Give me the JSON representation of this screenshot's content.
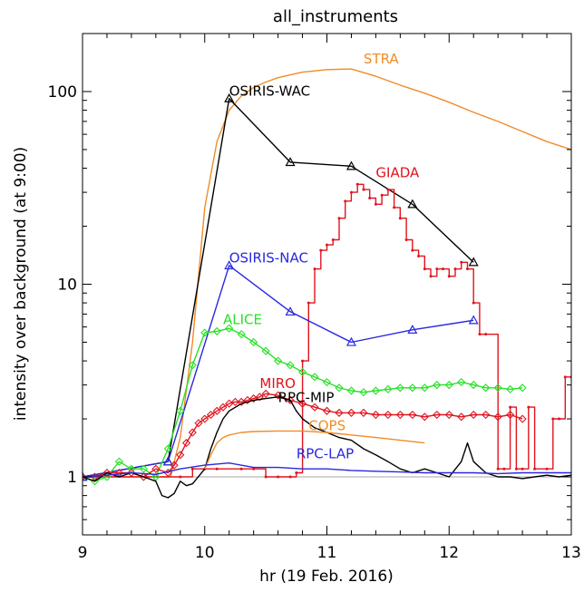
{
  "chart_data": {
    "type": "line",
    "title": "all_instruments",
    "xlabel": "hr (19 Feb. 2016)",
    "ylabel": "intensity over background (at 9:00)",
    "xlim": [
      9,
      13
    ],
    "ylim": [
      0.5,
      200
    ],
    "y_scale": "log",
    "x_ticks": [
      9,
      10,
      11,
      12,
      13
    ],
    "x_tick_labels": [
      "9",
      "10",
      "11",
      "12",
      "13"
    ],
    "y_ticks": [
      1,
      10,
      100
    ],
    "y_tick_labels": [
      "1",
      "10",
      "100"
    ],
    "reference_line": 1,
    "colors": {
      "black": "#000000",
      "orange": "#f08c28",
      "red": "#e0141e",
      "blue": "#2828e0",
      "green": "#28e028",
      "gray": "#888888"
    },
    "series": [
      {
        "name": "STRA",
        "color": "#f08c28",
        "style": "line",
        "x": [
          9.0,
          9.2,
          9.4,
          9.6,
          9.72,
          9.8,
          9.9,
          10.0,
          10.1,
          10.2,
          10.3,
          10.4,
          10.5,
          10.6,
          10.7,
          10.8,
          10.9,
          11.0,
          11.2,
          11.4,
          11.6,
          11.8,
          12.0,
          12.2,
          12.4,
          12.6,
          12.8,
          13.0
        ],
        "y": [
          1.0,
          1.0,
          1.0,
          1.0,
          1.0,
          1.6,
          5.0,
          25.0,
          55.0,
          80.0,
          95.0,
          105.0,
          112.0,
          118.0,
          122.0,
          126.0,
          128.0,
          130.0,
          131.0,
          120.0,
          108.0,
          98.0,
          88.0,
          78.0,
          70.0,
          62.0,
          55.0,
          50.0
        ]
      },
      {
        "name": "OSIRIS-WAC",
        "color": "#000000",
        "style": "triangle",
        "x": [
          9.0,
          9.7,
          10.2,
          10.7,
          11.2,
          11.7,
          12.2
        ],
        "y": [
          1.0,
          1.2,
          92.0,
          43.0,
          41.0,
          26.0,
          13.0
        ]
      },
      {
        "name": "GIADA",
        "color": "#e0141e",
        "style": "dot-step",
        "x": [
          9.0,
          9.8,
          9.9,
          10.0,
          10.1,
          10.3,
          10.4,
          10.5,
          10.6,
          10.7,
          10.75,
          10.8,
          10.85,
          10.9,
          10.95,
          11.0,
          11.05,
          11.1,
          11.15,
          11.2,
          11.25,
          11.3,
          11.35,
          11.4,
          11.45,
          11.5,
          11.55,
          11.6,
          11.65,
          11.7,
          11.75,
          11.8,
          11.85,
          11.9,
          11.95,
          12.0,
          12.05,
          12.1,
          12.15,
          12.2,
          12.25,
          12.3,
          12.4,
          12.45,
          12.5,
          12.55,
          12.6,
          12.65,
          12.7,
          12.8,
          12.85,
          12.9,
          12.95,
          13.0
        ],
        "y": [
          1.0,
          1.0,
          1.1,
          1.1,
          1.1,
          1.1,
          1.1,
          1.0,
          1.0,
          1.0,
          1.05,
          4.0,
          8.0,
          12.0,
          15.0,
          16.0,
          17.0,
          22.0,
          27.0,
          30.0,
          33.0,
          31.0,
          28.0,
          26.0,
          29.0,
          31.0,
          25.0,
          22.0,
          17.0,
          15.0,
          14.0,
          12.0,
          11.0,
          12.0,
          12.0,
          11.0,
          12.0,
          13.0,
          12.0,
          8.0,
          5.5,
          5.5,
          1.1,
          1.1,
          2.3,
          1.1,
          1.1,
          2.3,
          1.1,
          1.1,
          2.0,
          2.0,
          3.3,
          3.3
        ]
      },
      {
        "name": "OSIRIS-NAC",
        "color": "#2828e0",
        "style": "triangle",
        "x": [
          9.0,
          9.7,
          10.2,
          10.7,
          11.2,
          11.7,
          12.2
        ],
        "y": [
          1.0,
          1.2,
          12.5,
          7.2,
          5.0,
          5.8,
          6.5
        ]
      },
      {
        "name": "ALICE",
        "color": "#28e028",
        "style": "diamond",
        "x": [
          9.0,
          9.1,
          9.2,
          9.3,
          9.4,
          9.5,
          9.6,
          9.7,
          9.8,
          9.9,
          10.0,
          10.1,
          10.2,
          10.3,
          10.4,
          10.5,
          10.6,
          10.7,
          10.8,
          10.9,
          11.0,
          11.1,
          11.2,
          11.3,
          11.4,
          11.5,
          11.6,
          11.7,
          11.8,
          11.9,
          12.0,
          12.1,
          12.2,
          12.3,
          12.4,
          12.5,
          12.6
        ],
        "y": [
          1.0,
          0.95,
          1.0,
          1.2,
          1.1,
          1.1,
          1.0,
          1.4,
          2.2,
          3.8,
          5.6,
          5.7,
          5.9,
          5.5,
          5.0,
          4.5,
          4.0,
          3.8,
          3.5,
          3.3,
          3.1,
          2.9,
          2.8,
          2.75,
          2.8,
          2.85,
          2.9,
          2.9,
          2.9,
          3.0,
          3.0,
          3.1,
          3.0,
          2.9,
          2.9,
          2.85,
          2.9
        ]
      },
      {
        "name": "MIRO",
        "color": "#e0141e",
        "style": "diamond",
        "x": [
          9.0,
          9.1,
          9.2,
          9.3,
          9.4,
          9.5,
          9.6,
          9.7,
          9.75,
          9.8,
          9.85,
          9.9,
          9.95,
          10.0,
          10.05,
          10.1,
          10.15,
          10.2,
          10.25,
          10.3,
          10.35,
          10.4,
          10.45,
          10.5,
          10.6,
          10.7,
          10.8,
          10.9,
          11.0,
          11.1,
          11.2,
          11.3,
          11.4,
          11.5,
          11.6,
          11.7,
          11.8,
          11.9,
          12.0,
          12.1,
          12.2,
          12.3,
          12.4,
          12.5,
          12.6
        ],
        "y": [
          1.0,
          1.0,
          1.05,
          1.05,
          1.05,
          1.0,
          1.1,
          1.05,
          1.15,
          1.3,
          1.5,
          1.7,
          1.9,
          2.0,
          2.1,
          2.2,
          2.3,
          2.4,
          2.45,
          2.45,
          2.5,
          2.55,
          2.6,
          2.7,
          2.65,
          2.5,
          2.4,
          2.3,
          2.2,
          2.15,
          2.15,
          2.15,
          2.1,
          2.1,
          2.1,
          2.1,
          2.05,
          2.1,
          2.1,
          2.05,
          2.1,
          2.1,
          2.05,
          2.1,
          2.0
        ]
      },
      {
        "name": "RPC-MIP",
        "color": "#000000",
        "style": "line",
        "x": [
          9.0,
          9.1,
          9.2,
          9.3,
          9.4,
          9.5,
          9.6,
          9.65,
          9.7,
          9.75,
          9.8,
          9.85,
          9.9,
          10.0,
          10.05,
          10.1,
          10.15,
          10.2,
          10.3,
          10.4,
          10.5,
          10.6,
          10.7,
          10.75,
          10.8,
          10.9,
          11.0,
          11.1,
          11.2,
          11.3,
          11.4,
          11.5,
          11.6,
          11.7,
          11.8,
          11.9,
          12.0,
          12.1,
          12.15,
          12.2,
          12.3,
          12.4,
          12.5,
          12.6,
          12.7,
          12.8,
          12.9,
          13.0
        ],
        "y": [
          1.0,
          0.95,
          1.05,
          1.0,
          1.05,
          1.0,
          0.95,
          0.8,
          0.78,
          0.82,
          0.95,
          0.9,
          0.92,
          1.1,
          1.4,
          1.7,
          2.0,
          2.2,
          2.4,
          2.5,
          2.55,
          2.6,
          2.5,
          2.2,
          2.0,
          1.8,
          1.7,
          1.6,
          1.55,
          1.4,
          1.3,
          1.2,
          1.1,
          1.05,
          1.1,
          1.05,
          1.0,
          1.2,
          1.5,
          1.2,
          1.05,
          1.0,
          1.0,
          0.98,
          1.0,
          1.02,
          1.0,
          1.02
        ]
      },
      {
        "name": "COPS",
        "color": "#f08c28",
        "style": "line",
        "x": [
          10.0,
          10.05,
          10.1,
          10.15,
          10.2,
          10.3,
          10.4,
          10.6,
          10.8,
          11.0,
          11.2,
          11.4,
          11.6,
          11.8
        ],
        "y": [
          1.1,
          1.3,
          1.5,
          1.6,
          1.65,
          1.7,
          1.72,
          1.73,
          1.73,
          1.7,
          1.65,
          1.6,
          1.55,
          1.5
        ]
      },
      {
        "name": "RPC-LAP",
        "color": "#2828e0",
        "style": "line",
        "x": [
          9.0,
          9.2,
          9.4,
          9.6,
          9.8,
          10.0,
          10.2,
          10.4,
          10.6,
          10.8,
          11.0,
          11.2,
          11.4,
          11.6,
          11.8,
          12.0,
          12.2,
          12.4,
          12.6,
          12.8,
          13.0
        ],
        "y": [
          1.0,
          1.02,
          1.05,
          1.03,
          1.1,
          1.15,
          1.18,
          1.12,
          1.12,
          1.1,
          1.1,
          1.08,
          1.07,
          1.06,
          1.05,
          1.05,
          1.05,
          1.04,
          1.05,
          1.05,
          1.05
        ]
      }
    ],
    "series_labels": [
      {
        "text": "STRA",
        "color": "#f08c28",
        "x": 11.3,
        "y": 140
      },
      {
        "text": "OSIRIS-WAC",
        "color": "#000000",
        "x": 10.2,
        "y": 95
      },
      {
        "text": "GIADA",
        "color": "#e0141e",
        "x": 11.4,
        "y": 36
      },
      {
        "text": "OSIRIS-NAC",
        "color": "#2828e0",
        "x": 10.2,
        "y": 13
      },
      {
        "text": "ALICE",
        "color": "#28e028",
        "x": 10.15,
        "y": 6.2
      },
      {
        "text": "MIRO",
        "color": "#e0141e",
        "x": 10.45,
        "y": 2.9
      },
      {
        "text": "RPC-MIP",
        "color": "#000000",
        "x": 10.6,
        "y": 2.45
      },
      {
        "text": "COPS",
        "color": "#f08c28",
        "x": 10.85,
        "y": 1.75
      },
      {
        "text": "RPC-LAP",
        "color": "#2828e0",
        "x": 10.75,
        "y": 1.25
      }
    ]
  }
}
